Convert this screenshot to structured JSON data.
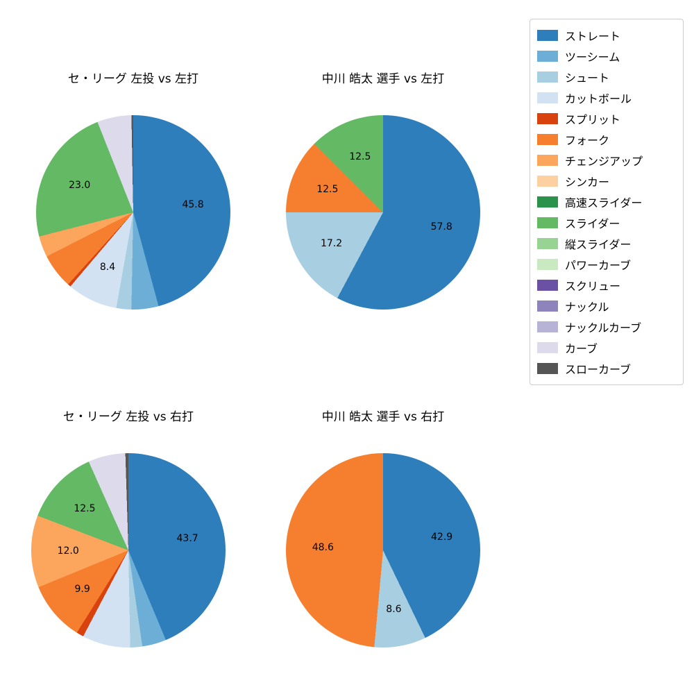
{
  "legend": {
    "items": [
      {
        "label": "ストレート",
        "color": "#2e7ebc"
      },
      {
        "label": "ツーシーム",
        "color": "#6caed6"
      },
      {
        "label": "シュート",
        "color": "#a8cee2"
      },
      {
        "label": "カットボール",
        "color": "#d2e2f2"
      },
      {
        "label": "スプリット",
        "color": "#d7420f"
      },
      {
        "label": "フォーク",
        "color": "#f67f2f"
      },
      {
        "label": "チェンジアップ",
        "color": "#fba55d"
      },
      {
        "label": "シンカー",
        "color": "#fdd0a2"
      },
      {
        "label": "高速スライダー",
        "color": "#2a924a"
      },
      {
        "label": "スライダー",
        "color": "#64b964"
      },
      {
        "label": "縦スライダー",
        "color": "#97d494"
      },
      {
        "label": "パワーカーブ",
        "color": "#c9eac1"
      },
      {
        "label": "スクリュー",
        "color": "#6a51a3"
      },
      {
        "label": "ナックル",
        "color": "#8f83bb"
      },
      {
        "label": "ナックルカーブ",
        "color": "#b7b3d7"
      },
      {
        "label": "カーブ",
        "color": "#dcdaeb"
      },
      {
        "label": "スローカーブ",
        "color": "#555555"
      }
    ]
  },
  "chart_data": [
    {
      "type": "pie",
      "title": "セ・リーグ 左投 vs 左打",
      "start_angle_deg": 0,
      "direction": "clockwise",
      "slices": [
        {
          "name": "ストレート",
          "value": 45.8,
          "label": "45.8"
        },
        {
          "name": "ツーシーム",
          "value": 4.5,
          "label": null
        },
        {
          "name": "シュート",
          "value": 2.5,
          "label": null
        },
        {
          "name": "カットボール",
          "value": 8.4,
          "label": "8.4"
        },
        {
          "name": "スプリット",
          "value": 0.5,
          "label": null
        },
        {
          "name": "フォーク",
          "value": 5.8,
          "label": null
        },
        {
          "name": "チェンジアップ",
          "value": 3.5,
          "label": null
        },
        {
          "name": "スライダー",
          "value": 23.0,
          "label": "23.0"
        },
        {
          "name": "カーブ",
          "value": 5.7,
          "label": null
        },
        {
          "name": "スローカーブ",
          "value": 0.3,
          "label": null
        }
      ]
    },
    {
      "type": "pie",
      "title": "中川 皓太 選手 vs 左打",
      "start_angle_deg": 0,
      "direction": "clockwise",
      "slices": [
        {
          "name": "ストレート",
          "value": 57.8,
          "label": "57.8"
        },
        {
          "name": "シュート",
          "value": 17.2,
          "label": "17.2"
        },
        {
          "name": "フォーク",
          "value": 12.5,
          "label": "12.5"
        },
        {
          "name": "スライダー",
          "value": 12.5,
          "label": "12.5"
        }
      ]
    },
    {
      "type": "pie",
      "title": "セ・リーグ 左投 vs 右打",
      "start_angle_deg": 0,
      "direction": "clockwise",
      "slices": [
        {
          "name": "ストレート",
          "value": 43.7,
          "label": "43.7"
        },
        {
          "name": "ツーシーム",
          "value": 4.0,
          "label": null
        },
        {
          "name": "シュート",
          "value": 2.0,
          "label": null
        },
        {
          "name": "カットボール",
          "value": 8.0,
          "label": null
        },
        {
          "name": "スプリット",
          "value": 1.2,
          "label": null
        },
        {
          "name": "フォーク",
          "value": 9.9,
          "label": "9.9"
        },
        {
          "name": "チェンジアップ",
          "value": 12.0,
          "label": "12.0"
        },
        {
          "name": "スライダー",
          "value": 12.5,
          "label": "12.5"
        },
        {
          "name": "カーブ",
          "value": 6.2,
          "label": null
        },
        {
          "name": "スローカーブ",
          "value": 0.5,
          "label": null
        }
      ]
    },
    {
      "type": "pie",
      "title": "中川 皓太 選手 vs 右打",
      "start_angle_deg": 0,
      "direction": "clockwise",
      "slices": [
        {
          "name": "ストレート",
          "value": 42.9,
          "label": "42.9"
        },
        {
          "name": "シュート",
          "value": 8.6,
          "label": "8.6"
        },
        {
          "name": "フォーク",
          "value": 48.6,
          "label": "48.6"
        }
      ]
    }
  ]
}
